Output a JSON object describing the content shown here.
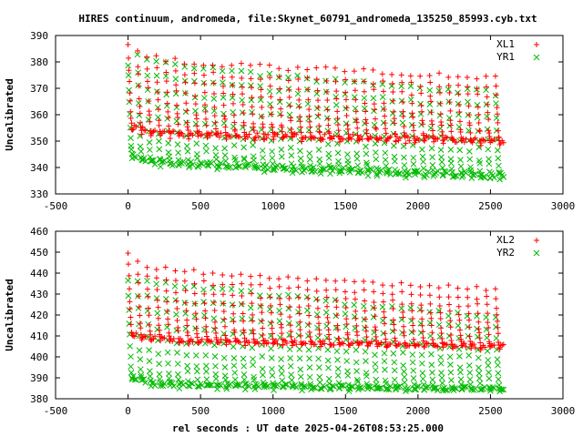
{
  "title": "HIRES continuum, andromeda, file:Skynet_60791_andromeda_135250_85993.cyb.txt",
  "xlabel": "rel seconds : UT date 2025-04-26T08:53:25.000",
  "chart_data": [
    {
      "type": "scatter",
      "ylabel": "Uncalibrated",
      "xlim": [
        -500,
        3000
      ],
      "ylim": [
        330,
        390
      ],
      "xticks": [
        -500,
        0,
        500,
        1000,
        1500,
        2000,
        2500,
        3000
      ],
      "yticks": [
        330,
        340,
        350,
        360,
        370,
        380,
        390
      ],
      "cycle": {
        "x_start": 0,
        "x_end": 2600,
        "count": 40
      },
      "series": [
        {
          "name": "XL1",
          "marker": "+",
          "color": "#ff0000",
          "top_trend": [
            [
              0,
              386
            ],
            [
              100,
              382
            ],
            [
              400,
              380
            ],
            [
              1000,
              378
            ],
            [
              1800,
              376
            ],
            [
              2600,
              374
            ]
          ],
          "bottom_trend": [
            [
              0,
              355
            ],
            [
              200,
              352
            ],
            [
              1000,
              351
            ],
            [
              2000,
              350
            ],
            [
              2600,
              349
            ]
          ]
        },
        {
          "name": "YR1",
          "marker": "x",
          "color": "#00bb00",
          "top_trend": [
            [
              0,
              379
            ],
            [
              60,
              382
            ],
            [
              300,
              379
            ],
            [
              1000,
              375
            ],
            [
              2000,
              370
            ],
            [
              2600,
              368
            ]
          ],
          "bottom_trend": [
            [
              0,
              344
            ],
            [
              200,
              341
            ],
            [
              1000,
              339
            ],
            [
              2000,
              337
            ],
            [
              2600,
              336
            ]
          ]
        }
      ]
    },
    {
      "type": "scatter",
      "ylabel": "Uncalibrated",
      "xlim": [
        -500,
        3000
      ],
      "ylim": [
        380,
        460
      ],
      "xticks": [
        -500,
        0,
        500,
        1000,
        1500,
        2000,
        2500,
        3000
      ],
      "yticks": [
        380,
        390,
        400,
        410,
        420,
        430,
        440,
        450,
        460
      ],
      "cycle": {
        "x_start": 0,
        "x_end": 2600,
        "count": 40
      },
      "series": [
        {
          "name": "XL2",
          "marker": "+",
          "color": "#ff0000",
          "top_trend": [
            [
              0,
              450
            ],
            [
              100,
              443
            ],
            [
              400,
              441
            ],
            [
              1000,
              438
            ],
            [
              1800,
              435
            ],
            [
              2600,
              432
            ]
          ],
          "bottom_trend": [
            [
              0,
              410
            ],
            [
              300,
              407
            ],
            [
              1000,
              406
            ],
            [
              2000,
              405
            ],
            [
              2600,
              404
            ]
          ]
        },
        {
          "name": "YR2",
          "marker": "x",
          "color": "#00bb00",
          "top_trend": [
            [
              0,
              437
            ],
            [
              100,
              436
            ],
            [
              500,
              433
            ],
            [
              1200,
              428
            ],
            [
              2000,
              422
            ],
            [
              2600,
              418
            ]
          ],
          "bottom_trend": [
            [
              0,
              390
            ],
            [
              200,
              386
            ],
            [
              1000,
              385
            ],
            [
              2000,
              384
            ],
            [
              2600,
              384
            ]
          ]
        }
      ]
    }
  ]
}
